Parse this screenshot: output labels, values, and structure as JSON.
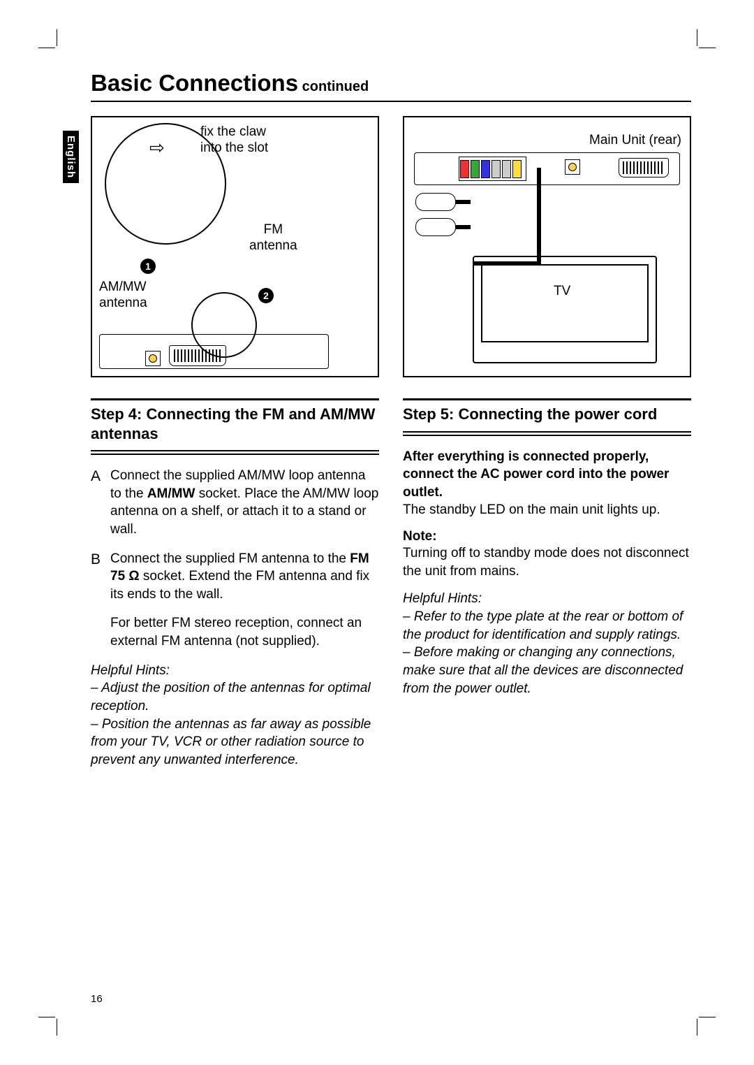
{
  "language_tab": "English",
  "title_main": "Basic Connections",
  "title_cont": " continued",
  "figure1": {
    "claw_text": "fix the claw\ninto the slot",
    "fm_label": "FM\nantenna",
    "am_label": "AM/MW\nantenna",
    "bullet1": "1",
    "bullet2": "2"
  },
  "figure2": {
    "main_unit": "Main Unit (rear)",
    "tv": "TV"
  },
  "step4": {
    "label": "Step 4:",
    "title": "Connecting the FM and AM/MW antennas",
    "A": {
      "marker": "A",
      "text_pre": "Connect the supplied AM/MW loop antenna to the ",
      "bold": "AM/MW",
      "text_post": " socket. Place the AM/MW loop antenna on a shelf, or attach it to a stand or wall."
    },
    "B": {
      "marker": "B",
      "text_pre": "Connect the supplied FM antenna to the ",
      "bold": "FM 75 Ω",
      "text_post": " socket. Extend the FM antenna and fix its ends to the wall.",
      "extra": "For better FM stereo reception, connect an external FM antenna (not supplied)."
    },
    "hints_title": "Helpful Hints:",
    "hint1": "– Adjust the position of the antennas for optimal reception.",
    "hint2": "– Position the antennas as far away as possible from your TV, VCR or other radiation source to prevent any unwanted interference."
  },
  "step5": {
    "label": "Step 5:",
    "title": "Connecting the power cord",
    "lead_bold": "After everything is connected properly, connect the AC power cord into the power outlet.",
    "lead_rest": "The standby LED on the main unit lights up.",
    "note_head": "Note:",
    "note_body": "Turning off to standby mode does not disconnect the unit from mains.",
    "hints_title": "Helpful Hints:",
    "hint1": "– Refer to the type plate at the rear or bottom of the product for identification and supply ratings.",
    "hint2": "– Before making or changing any connections, make sure that all the devices are disconnected from the power outlet."
  },
  "page_number": "16"
}
